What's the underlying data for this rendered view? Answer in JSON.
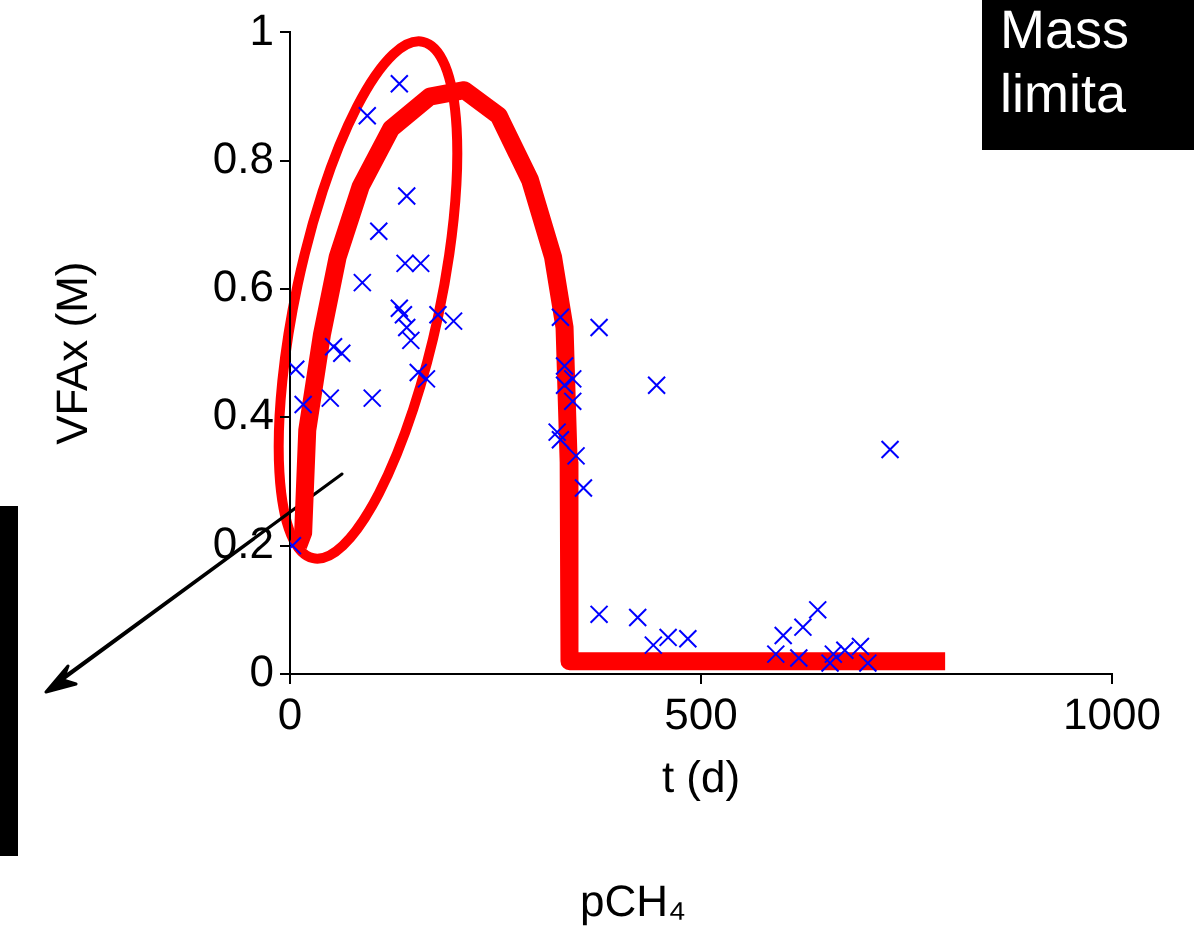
{
  "chart_data": {
    "type": "scatter",
    "xlabel": "t (d)",
    "ylabel": "VFAx (M)",
    "xlim": [
      0,
      1000
    ],
    "xticks": [
      0,
      500,
      1000
    ],
    "ylim": [
      0,
      1
    ],
    "yticks": [
      0,
      0.2,
      0.4,
      0.6,
      0.8,
      1
    ],
    "grid": false,
    "legend": false,
    "annotations": [
      "Mass",
      "limita",
      "pCH₄"
    ],
    "series": [
      {
        "color": "#0000ff",
        "marker": "cross",
        "x": [
          133,
          94,
          142,
          108,
          140,
          159,
          88,
          133,
          138,
          142,
          180,
          199,
          53,
          63,
          7,
          16,
          49,
          100,
          147,
          156,
          166,
          3,
          329,
          376,
          334,
          344,
          334,
          344,
          325,
          329,
          348,
          357,
          446,
          730,
          376,
          423,
          442,
          460,
          484,
          600,
          624,
          642,
          619,
          661,
          675,
          694,
          703,
          657,
          591
        ],
        "values": [
          0.92,
          0.87,
          0.745,
          0.69,
          0.64,
          0.64,
          0.61,
          0.57,
          0.56,
          0.54,
          0.56,
          0.55,
          0.51,
          0.5,
          0.475,
          0.42,
          0.43,
          0.43,
          0.52,
          0.47,
          0.46,
          0.2,
          0.556,
          0.54,
          0.48,
          0.46,
          0.45,
          0.425,
          0.377,
          0.365,
          0.34,
          0.29,
          0.45,
          0.35,
          0.093,
          0.088,
          0.045,
          0.057,
          0.055,
          0.06,
          0.073,
          0.1,
          0.025,
          0.031,
          0.037,
          0.043,
          0.017,
          0.017,
          0.031
        ]
      },
      {
        "type": "line",
        "color": "#ff0000",
        "marker": "none",
        "line_style": "solid",
        "x": [
          10,
          16,
          21,
          39,
          58,
          86,
          123,
          170,
          212,
          254,
          292,
          320,
          334,
          339,
          340,
          797
        ],
        "values": [
          0.2,
          0.22,
          0.38,
          0.53,
          0.65,
          0.76,
          0.85,
          0.9,
          0.91,
          0.87,
          0.77,
          0.65,
          0.54,
          0.33,
          0.02,
          0.02
        ]
      }
    ]
  }
}
